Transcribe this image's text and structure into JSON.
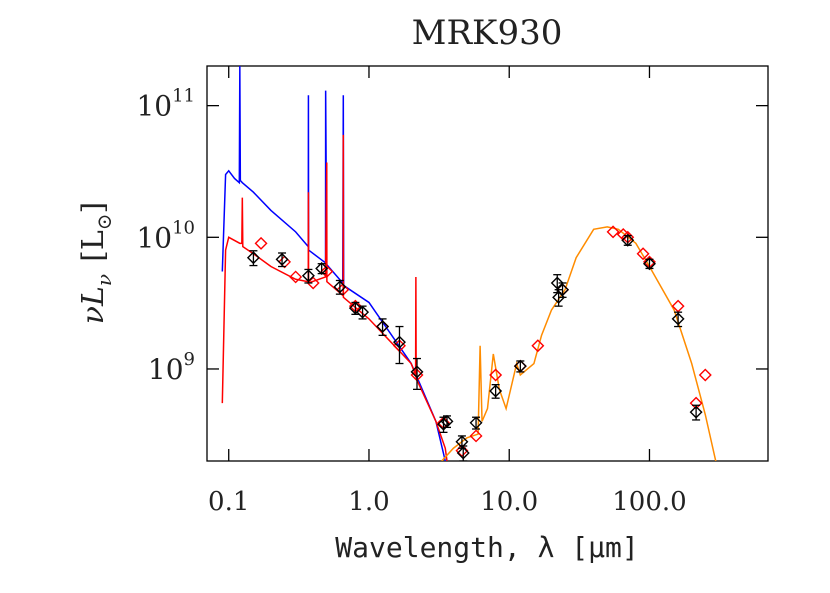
{
  "chart_data": {
    "type": "line",
    "title": "MRK930",
    "x_label": "Wavelength, λ [μm]",
    "y_label_parts": [
      "νL",
      "ν",
      "[L",
      "⊙",
      "]"
    ],
    "xscale": "log",
    "yscale": "log",
    "xlim": [
      0.07,
      700
    ],
    "ylim": [
      200000000,
      200000000000
    ],
    "xticks": [
      0.1,
      {
        "value": 1,
        "label": "1.0"
      },
      {
        "value": 10,
        "label": "10.0"
      },
      {
        "value": 100,
        "label": "100.0"
      }
    ],
    "yticks": [
      {
        "value": 1000000000,
        "label": "10",
        "exponent": "9"
      },
      {
        "value": 10000000000,
        "label": "10",
        "exponent": "10"
      },
      {
        "value": 100000000000,
        "label": "10",
        "exponent": "11"
      }
    ],
    "series": [
      {
        "style": "line",
        "color": "#0000ff",
        "x": [
          0.09,
          0.095,
          0.1,
          0.11,
          0.119,
          0.12,
          0.121,
          0.125,
          0.15,
          0.2,
          0.3,
          0.369,
          0.37,
          0.371,
          0.48,
          0.49,
          0.491,
          0.5,
          0.65,
          0.656,
          0.66,
          1.0,
          2.0,
          3.0,
          3.5
        ],
        "values": [
          5500000000,
          30000000000,
          32000000000,
          28000000000,
          26000000000,
          200000000000,
          27000000000,
          26000000000,
          22000000000,
          16000000000,
          11000000000,
          8500000000,
          120000000000,
          8000000000,
          6500000000,
          6400000000,
          130000000000,
          6200000000,
          4500000000,
          120000000000,
          4300000000,
          3200000000,
          1100000000,
          400000000,
          200000000
        ]
      },
      {
        "style": "line",
        "color": "#ff0000",
        "x": [
          0.09,
          0.095,
          0.1,
          0.12,
          0.124,
          0.125,
          0.126,
          0.15,
          0.2,
          0.3,
          0.369,
          0.37,
          0.371,
          0.49,
          0.5,
          0.501,
          0.655,
          0.656,
          0.657,
          1.0,
          2.0,
          2.15,
          2.16,
          2.17,
          3.0,
          3.5,
          3.6
        ],
        "values": [
          550000000,
          8000000000,
          10000000000,
          9000000000,
          9000000000,
          20000000000,
          8500000000,
          7500000000,
          6000000000,
          4800000000,
          4600000000,
          22000000000,
          4500000000,
          5000000000,
          37000000000,
          4600000000,
          3600000000,
          60000000000,
          3500000000,
          2400000000,
          1100000000,
          900000000,
          5000000000,
          850000000,
          400000000,
          250000000,
          200000000
        ]
      },
      {
        "style": "line",
        "color": "#ff8c00",
        "x": [
          3.3,
          4,
          5,
          6,
          6.2,
          6.4,
          7,
          7.7,
          8.5,
          9.5,
          11.3,
          12,
          15,
          17,
          20,
          25,
          30,
          40,
          50,
          60,
          80,
          100,
          150,
          200,
          250,
          300
        ],
        "values": [
          200000000,
          250000000,
          300000000,
          320000000,
          1500000000,
          400000000,
          500000000,
          1300000000,
          700000000,
          500000000,
          1100000000,
          900000000,
          1100000000,
          1800000000,
          2800000000,
          4000000000,
          7000000000,
          11500000000,
          12000000000,
          11500000000,
          9000000000,
          6000000000,
          2800000000,
          1100000000,
          450000000,
          190000000
        ]
      },
      {
        "style": "markers",
        "color": "#ff0000",
        "x": [
          0.17,
          0.25,
          0.3,
          0.4,
          0.5,
          0.65,
          0.8,
          1.25,
          1.65,
          2.2,
          3.4,
          4.6,
          5.8,
          8,
          12,
          16,
          24,
          55,
          65,
          70,
          90,
          100,
          160,
          215,
          250
        ],
        "values": [
          9000000000,
          6500000000,
          5000000000,
          4500000000,
          5500000000,
          4000000000,
          3000000000,
          2100000000,
          1500000000,
          900000000,
          390000000,
          240000000,
          310000000,
          900000000,
          1050000000,
          1500000000,
          4000000000,
          11000000000,
          10500000000,
          10000000000,
          7500000000,
          6500000000,
          3000000000,
          550000000,
          900000000
        ]
      },
      {
        "style": "markers",
        "color": "#000000",
        "x": [
          0.15,
          0.24,
          0.37,
          0.46,
          0.62,
          0.8,
          0.9,
          1.25,
          1.65,
          2.2,
          3.4,
          3.6,
          4.6,
          4.7,
          5.8,
          8,
          12,
          22,
          22.5,
          24,
          70,
          100,
          160,
          215
        ],
        "values": [
          7000000000,
          6800000000,
          5100000000,
          5800000000,
          4200000000,
          2900000000,
          2700000000,
          2100000000,
          1600000000,
          950000000,
          380000000,
          400000000,
          280000000,
          230000000,
          390000000,
          680000000,
          1050000000,
          4500000000,
          3500000000,
          4000000000,
          9500000000,
          6300000000,
          2400000000,
          470000000
        ],
        "errors": [
          900000000,
          800000000,
          600000000,
          500000000,
          500000000,
          300000000,
          300000000,
          300000000,
          500000000,
          250000000,
          50000000,
          40000000,
          30000000,
          30000000,
          40000000,
          80000000,
          100000000,
          700000000,
          500000000,
          500000000,
          800000000,
          500000000,
          300000000,
          60000000
        ]
      }
    ]
  }
}
